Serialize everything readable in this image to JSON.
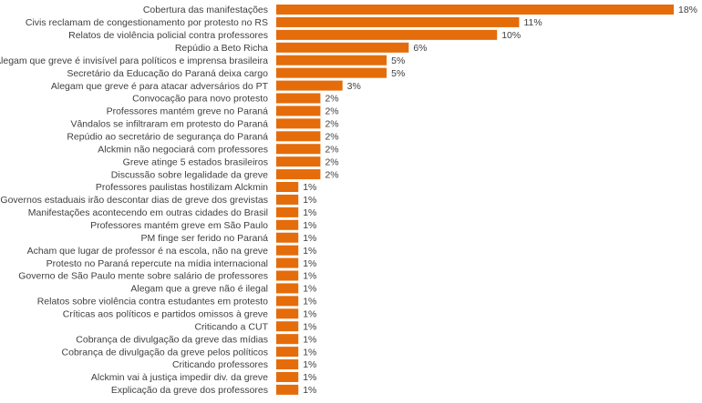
{
  "colors": {
    "bar": "#E46C0A",
    "text": "#404040"
  },
  "chart_data": {
    "type": "bar",
    "orientation": "horizontal",
    "categories": [
      "Cobertura das manifestações",
      "Civis reclamam de congestionamento  por protesto no RS",
      "Relatos de violência policial contra professores",
      "Repúdio a Beto Richa",
      "Alegam que greve é invisível para políticos e imprensa brasileira",
      "Secretário da Educação do Paraná deixa cargo",
      "Alegam que greve é para atacar adversários do PT",
      "Convocação para novo protesto",
      "Professores  mantém greve no Paraná",
      "Vândalos se infiltraram em protesto do Paraná",
      "Repúdio ao secretário de segurança do Paraná",
      "Alckmin não negociará com professores",
      "Greve atinge 5 estados brasileiros",
      "Discussão sobre legalidade da greve",
      "Professores paulistas hostilizam Alckmin",
      "Governos estaduais irão descontar dias de greve dos grevistas",
      "Manifestações  acontecendo em outras cidades do Brasil",
      "Professores mantém greve em São Paulo",
      "PM finge ser ferido no Paraná",
      "Acham que lugar de professor  é na escola, não na greve",
      "Protesto no Paraná repercute na mídia internacional",
      "Governo de São Paulo mente sobre salário de professores",
      "Alegam que a greve não é ilegal",
      "Relatos sobre violência contra estudantes em protesto",
      "Críticas aos políticos e partidos omissos à greve",
      "Criticando a CUT",
      "Cobrança de divulgação da greve das mídias",
      "Cobrança de divulgação da greve pelos políticos",
      "Criticando professores",
      "Alckmin vai à justiça impedir div. da greve",
      "Explicação da greve dos professores"
    ],
    "values": [
      18,
      11,
      10,
      6,
      5,
      5,
      3,
      2,
      2,
      2,
      2,
      2,
      2,
      2,
      1,
      1,
      1,
      1,
      1,
      1,
      1,
      1,
      1,
      1,
      1,
      1,
      1,
      1,
      1,
      1,
      1
    ],
    "value_labels": [
      "18%",
      "11%",
      "10%",
      "6%",
      "5%",
      "5%",
      "3%",
      "2%",
      "2%",
      "2%",
      "2%",
      "2%",
      "2%",
      "2%",
      "1%",
      "1%",
      "1%",
      "1%",
      "1%",
      "1%",
      "1%",
      "1%",
      "1%",
      "1%",
      "1%",
      "1%",
      "1%",
      "1%",
      "1%",
      "1%",
      "1%"
    ],
    "value_unit": "%",
    "xlim": [
      0,
      18
    ],
    "grid": false,
    "legend": "none"
  }
}
